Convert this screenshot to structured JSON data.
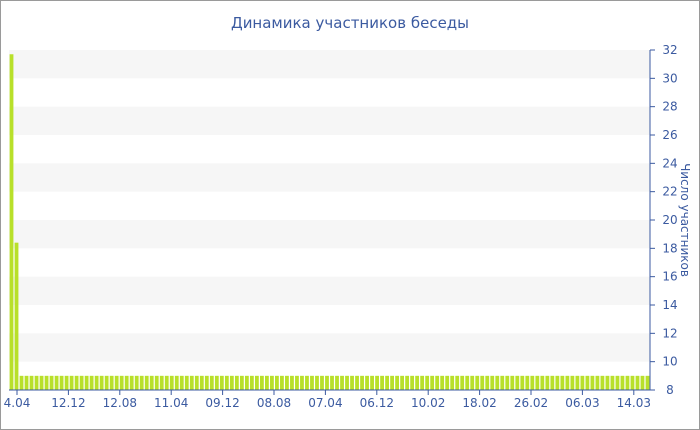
{
  "chart_data": {
    "type": "bar",
    "title": "Динамика участников беседы",
    "ylabel": "Число участников",
    "ylim": [
      8,
      32
    ],
    "yticks": [
      8,
      10,
      12,
      14,
      16,
      18,
      20,
      22,
      24,
      26,
      28,
      30,
      32
    ],
    "x_tick_labels": [
      "4.04",
      "12.12",
      "12.08",
      "11.04",
      "09.12",
      "08.08",
      "07.04",
      "06.12",
      "10.02",
      "18.02",
      "26.02",
      "06.03",
      "14.03"
    ],
    "bar_count": 128,
    "series": [
      {
        "values_head": [
          31.7,
          18.4
        ],
        "rest_value": 9
      }
    ],
    "bar_color": "#b8e02a",
    "grid": "alternating-horizontal-bands",
    "y_axis_side": "right"
  }
}
